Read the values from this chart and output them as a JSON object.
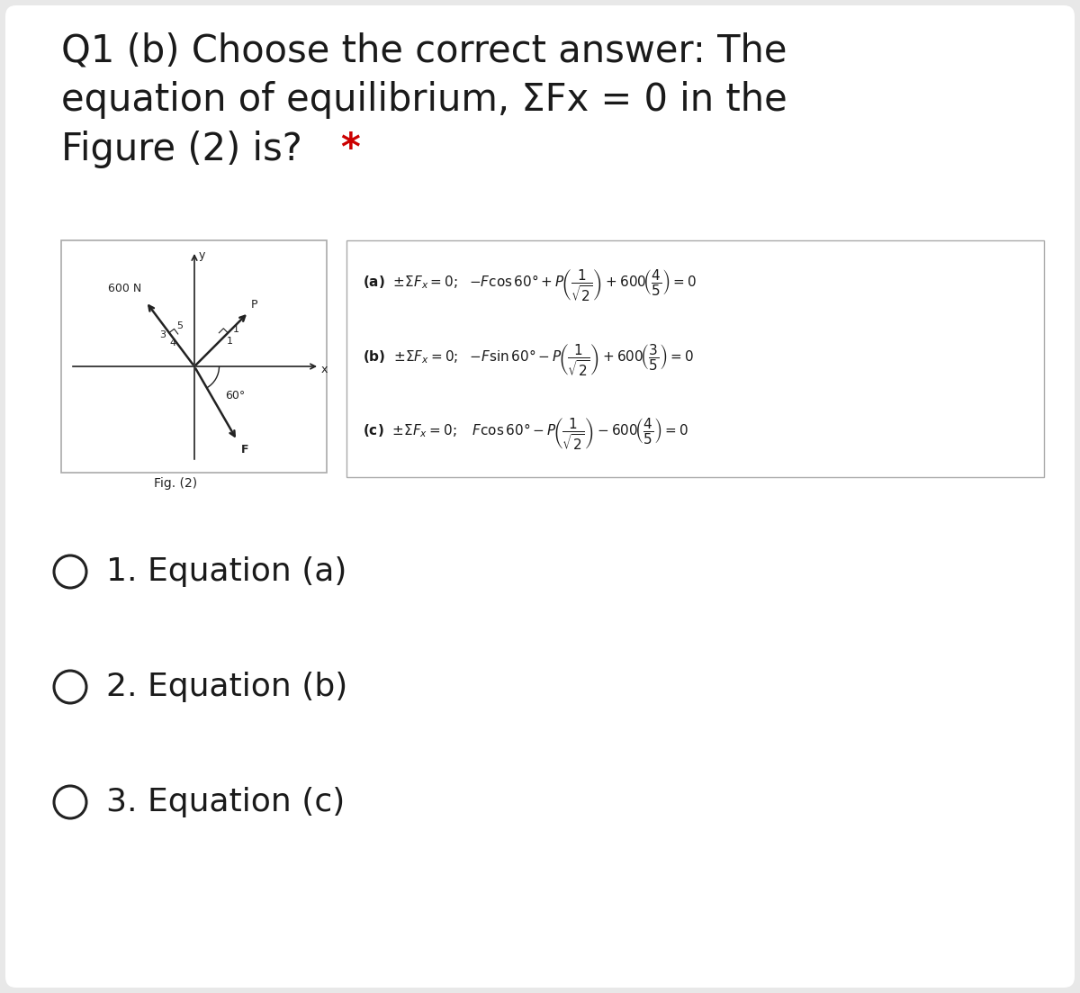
{
  "bg_color": "#e8e8e8",
  "card_color": "#ffffff",
  "text_color": "#1a1a1a",
  "title_line1": "Q1 (b) Choose the correct answer: The",
  "title_line2": "equation of equilibrium, ΣFx = 0 in the",
  "title_line3": "Figure (2) is?",
  "star_color": "#cc0000",
  "options": [
    "1. Equation (a)",
    "2. Equation (b)",
    "3. Equation (c)"
  ],
  "fig_label": "Fig. (2)",
  "force_label_600": "600 N",
  "force_label_P": "P",
  "force_label_F": "F",
  "axis_label_x": "x",
  "axis_label_y": "y",
  "angle_label": "60°",
  "dark": "#222222",
  "gray": "#888888"
}
